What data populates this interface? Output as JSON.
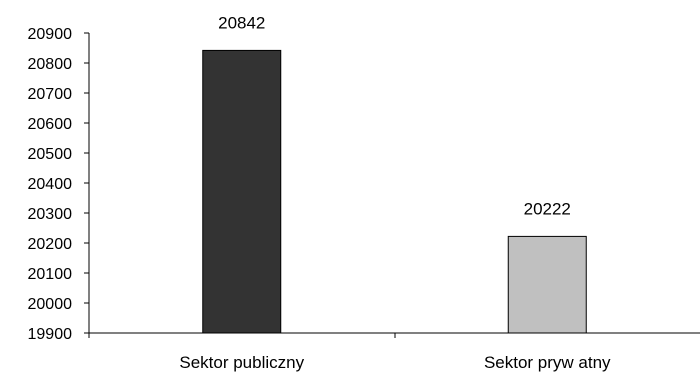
{
  "chart_data": {
    "type": "bar",
    "title": "",
    "xlabel": "",
    "ylabel": "",
    "categories": [
      "Sektor publiczny",
      "Sektor pryw atny"
    ],
    "values": [
      20842,
      20222
    ],
    "data_labels": [
      "20842",
      "20222"
    ],
    "ylim": [
      19900,
      20900
    ],
    "yticks": [
      19900,
      20000,
      20100,
      20200,
      20300,
      20400,
      20500,
      20600,
      20700,
      20800,
      20900
    ],
    "bar_colors": [
      "#333333",
      "#c0c0c0"
    ],
    "grid": false,
    "legend": "none"
  }
}
